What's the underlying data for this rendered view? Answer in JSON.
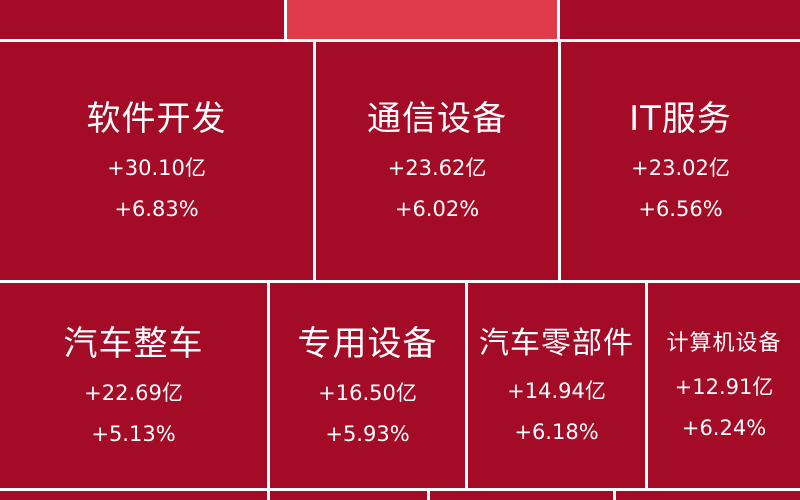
{
  "chart_data": {
    "type": "treemap",
    "colors": {
      "tile": "#a40b26",
      "highlight_tile": "#e03b4b",
      "border": "#ffffff",
      "text": "#ffffff"
    },
    "items": [
      {
        "name": "软件开发",
        "value_text": "+30.10亿",
        "change_text": "+6.83%",
        "value": 30.1,
        "change_pct": 6.83
      },
      {
        "name": "通信设备",
        "value_text": "+23.62亿",
        "change_text": "+6.02%",
        "value": 23.62,
        "change_pct": 6.02
      },
      {
        "name": "IT服务",
        "value_text": "+23.02亿",
        "change_text": "+6.56%",
        "value": 23.02,
        "change_pct": 6.56
      },
      {
        "name": "汽车整车",
        "value_text": "+22.69亿",
        "change_text": "+5.13%",
        "value": 22.69,
        "change_pct": 5.13
      },
      {
        "name": "专用设备",
        "value_text": "+16.50亿",
        "change_text": "+5.93%",
        "value": 16.5,
        "change_pct": 5.93
      },
      {
        "name": "汽车零部件",
        "value_text": "+14.94亿",
        "change_text": "+6.18%",
        "value": 14.94,
        "change_pct": 6.18
      },
      {
        "name": "计算机设备",
        "value_text": "+12.91亿",
        "change_text": "+6.24%",
        "value": 12.91,
        "change_pct": 6.24
      }
    ]
  }
}
